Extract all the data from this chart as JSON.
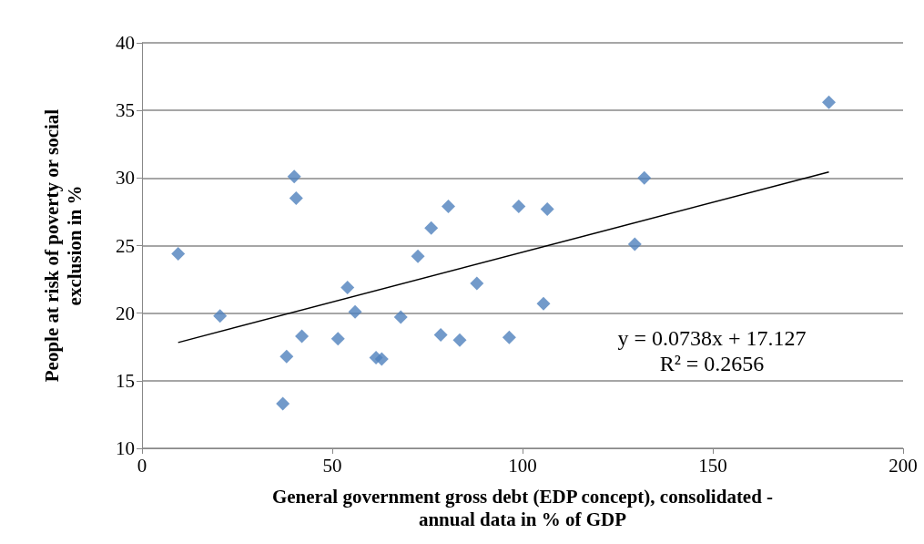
{
  "chart_data": {
    "type": "scatter",
    "xlabel": "General government gross debt (EDP concept), consolidated -\nannual data in % of GDP",
    "ylabel": "People at risk of poverty or social\nexclusion in %",
    "xlim": [
      0,
      200
    ],
    "xticks": [
      0,
      50,
      100,
      150,
      200
    ],
    "ylim": [
      10,
      40
    ],
    "yticks": [
      10,
      15,
      20,
      25,
      30,
      35,
      40
    ],
    "grid": "y",
    "marker": "diamond",
    "annotations": [
      "y = 0.0738x + 17.127\nR² = 0.2656"
    ],
    "series": [
      {
        "color": "#4f81bd",
        "x": [
          9.5,
          20.5,
          37,
          38,
          40,
          40.5,
          42,
          51.5,
          54,
          56,
          61.5,
          63,
          68,
          72.5,
          76,
          78.5,
          80.5,
          83.5,
          88,
          96.5,
          99,
          105.5,
          106.5,
          129.5,
          132,
          180.5
        ],
        "values": [
          24.4,
          19.8,
          13.3,
          16.8,
          30.1,
          28.5,
          18.3,
          18.1,
          21.9,
          20.1,
          16.7,
          16.6,
          19.7,
          24.2,
          26.3,
          18.4,
          27.9,
          18,
          22.2,
          18.2,
          27.9,
          20.7,
          27.7,
          25.1,
          30,
          35.6
        ]
      },
      {
        "type": "line",
        "marker": "none",
        "color": "#000000",
        "x": [
          9.5,
          180.5
        ],
        "values": [
          17.83,
          30.45
        ]
      }
    ]
  }
}
